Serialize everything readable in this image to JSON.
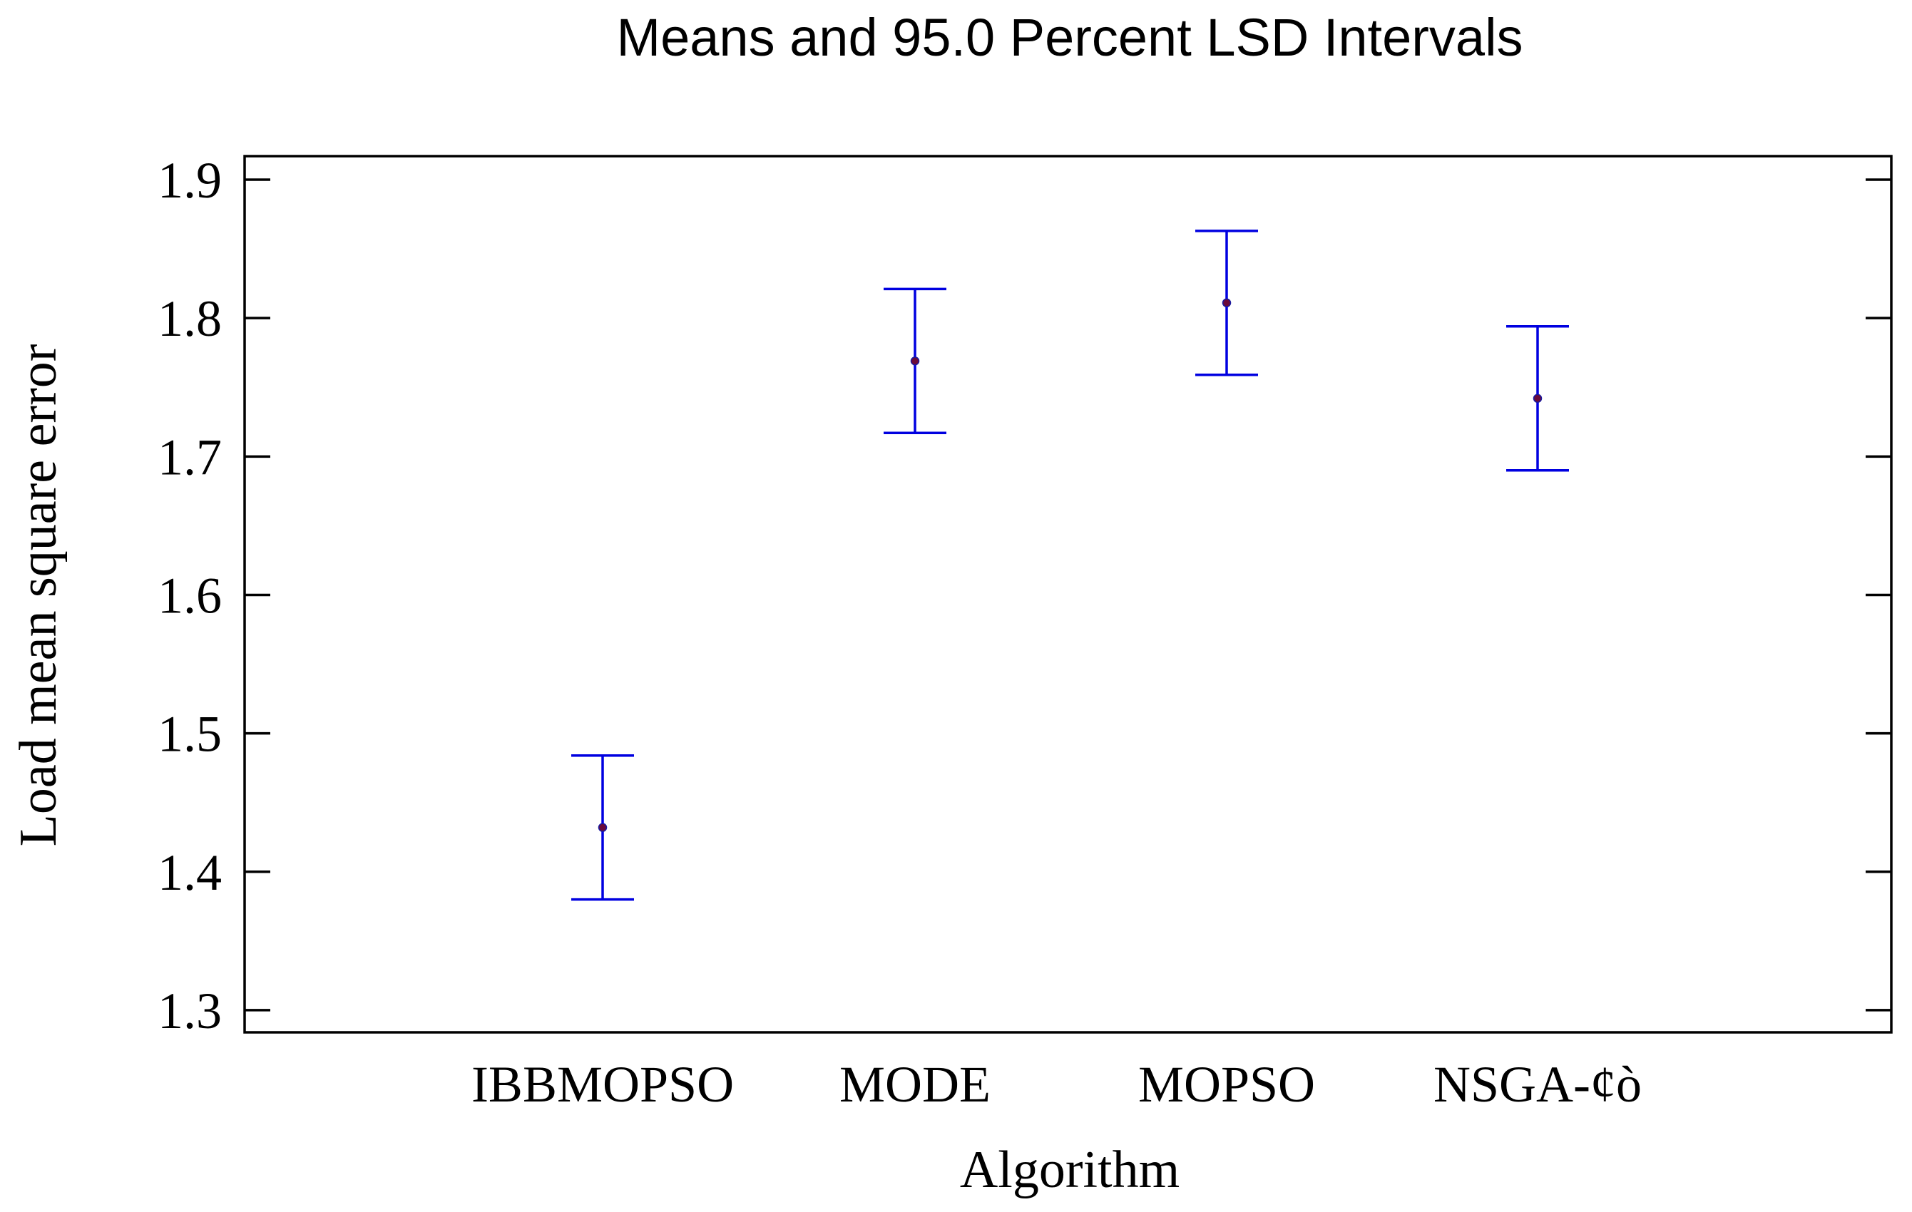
{
  "chart_data": {
    "type": "interval",
    "title": "Means and 95.0 Percent LSD Intervals",
    "xlabel": "Algorithm",
    "ylabel": "Load mean square error",
    "categories": [
      "IBBMOPSO",
      "MODE",
      "MOPSO",
      "NSGA-¢ò"
    ],
    "means": [
      1.432,
      1.769,
      1.811,
      1.742
    ],
    "lower": [
      1.38,
      1.717,
      1.759,
      1.69
    ],
    "upper": [
      1.484,
      1.821,
      1.863,
      1.794
    ],
    "yticks": [
      "1.3",
      "1.4",
      "1.5",
      "1.6",
      "1.7",
      "1.8",
      "1.9"
    ],
    "ylim": [
      1.284,
      1.917
    ],
    "grid": false,
    "colors": {
      "interval": "#0000e0",
      "mean_point": "#6a0a3a",
      "axis": "#000000"
    }
  }
}
